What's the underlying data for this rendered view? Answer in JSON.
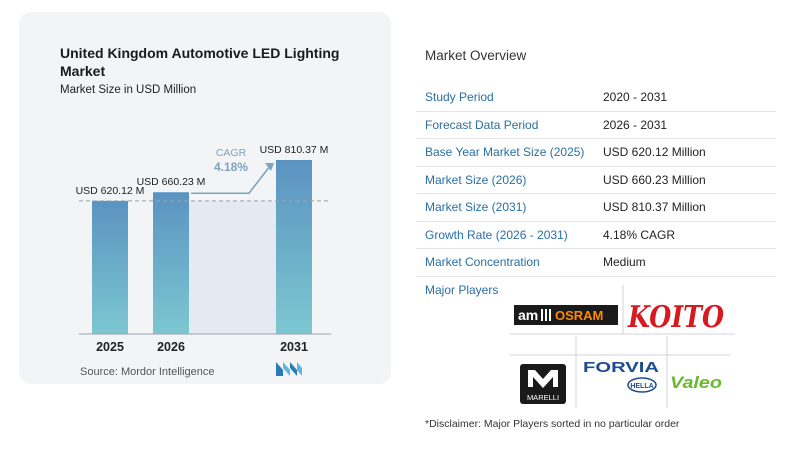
{
  "chart_data": {
    "type": "bar",
    "title": "United Kingdom Automotive LED Lighting Market",
    "subtitle": "Market Size in USD Million",
    "categories": [
      "2025",
      "2026",
      "2031"
    ],
    "values": [
      620.12,
      660.23,
      810.37
    ],
    "data_labels": [
      "USD 620.12 M",
      "USD 660.23 M",
      "USD 810.37 M"
    ],
    "ylim": [
      0,
      810.37
    ],
    "grid": false,
    "cagr_label": "CAGR",
    "cagr_value": "4.18%",
    "colors": {
      "bar_top": "#5b93c1",
      "bar_bottom": "#7cc7d1",
      "cagr": "#7fa3bf",
      "band": "#e4e9f2"
    }
  },
  "source": "Source:  Mordor Intelligence",
  "overview": {
    "title": "Market Overview",
    "rows": [
      {
        "label": "Study Period",
        "value": "2020 - 2031"
      },
      {
        "label": "Forecast Data Period",
        "value": "2026 - 2031"
      },
      {
        "label": "Base Year Market Size (2025)",
        "value": "USD 620.12 Million"
      },
      {
        "label": "Market Size (2026)",
        "value": "USD 660.23 Million"
      },
      {
        "label": "Market Size (2031)",
        "value": "USD 810.37 Million"
      },
      {
        "label": "Growth Rate (2026 - 2031)",
        "value": "4.18% CAGR"
      },
      {
        "label": "Market Concentration",
        "value": "Medium"
      }
    ]
  },
  "players": {
    "title": "Major Players",
    "logos": {
      "amsosram": {
        "prefix": "am",
        "name": "OSRAM"
      },
      "koito": "KOITO",
      "marelli": "MARELLI",
      "forvia": "FORVIA",
      "hella": "HELLA",
      "valeo": "Valeo"
    }
  },
  "disclaimer": "*Disclaimer: Major Players sorted in no particular order"
}
